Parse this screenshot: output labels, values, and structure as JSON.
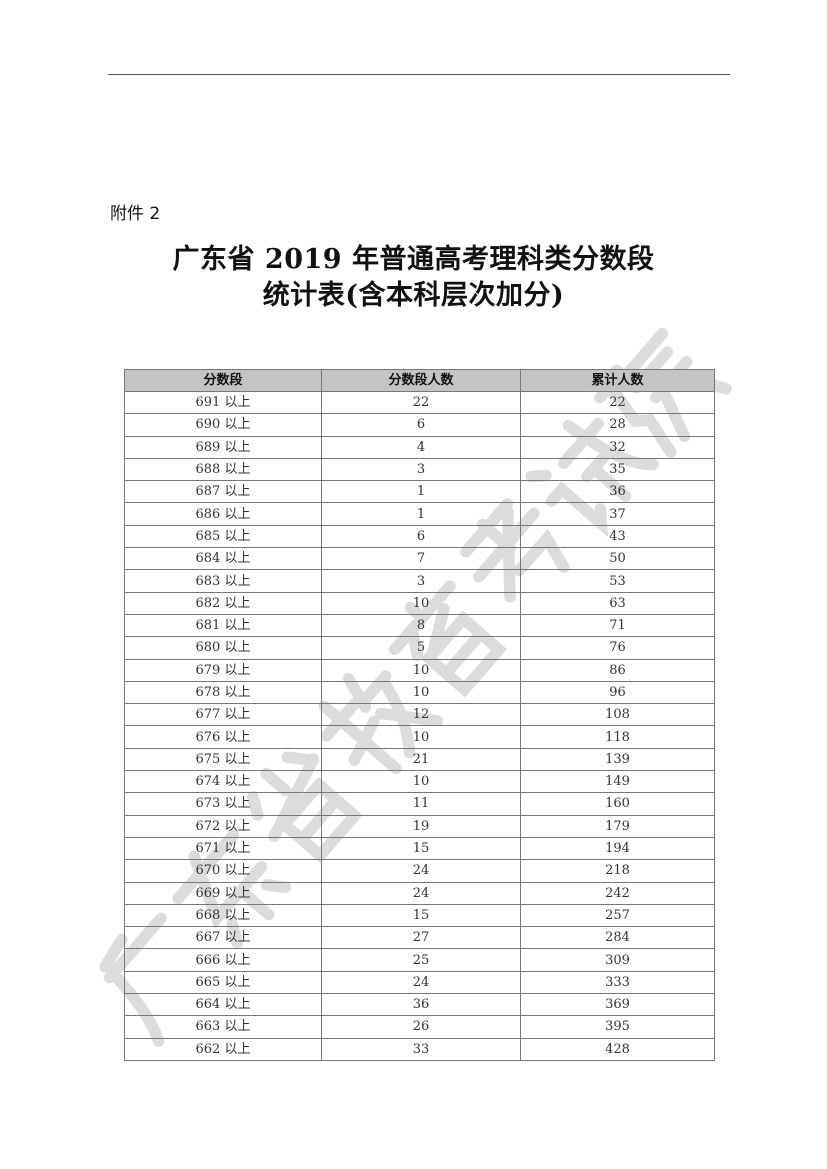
{
  "attachment_label": "附件 2",
  "title_line1": "广东省 2019 年普通高考理科类分数段",
  "title_line2": "统计表(含本科层次加分)",
  "watermark": "广东省教育考试院",
  "table": {
    "headers": [
      "分数段",
      "分数段人数",
      "累计人数"
    ],
    "rows": [
      [
        "691 以上",
        "22",
        "22"
      ],
      [
        "690 以上",
        "6",
        "28"
      ],
      [
        "689 以上",
        "4",
        "32"
      ],
      [
        "688 以上",
        "3",
        "35"
      ],
      [
        "687 以上",
        "1",
        "36"
      ],
      [
        "686 以上",
        "1",
        "37"
      ],
      [
        "685 以上",
        "6",
        "43"
      ],
      [
        "684 以上",
        "7",
        "50"
      ],
      [
        "683 以上",
        "3",
        "53"
      ],
      [
        "682 以上",
        "10",
        "63"
      ],
      [
        "681 以上",
        "8",
        "71"
      ],
      [
        "680 以上",
        "5",
        "76"
      ],
      [
        "679 以上",
        "10",
        "86"
      ],
      [
        "678 以上",
        "10",
        "96"
      ],
      [
        "677 以上",
        "12",
        "108"
      ],
      [
        "676 以上",
        "10",
        "118"
      ],
      [
        "675 以上",
        "21",
        "139"
      ],
      [
        "674 以上",
        "10",
        "149"
      ],
      [
        "673 以上",
        "11",
        "160"
      ],
      [
        "672 以上",
        "19",
        "179"
      ],
      [
        "671 以上",
        "15",
        "194"
      ],
      [
        "670 以上",
        "24",
        "218"
      ],
      [
        "669 以上",
        "24",
        "242"
      ],
      [
        "668 以上",
        "15",
        "257"
      ],
      [
        "667 以上",
        "27",
        "284"
      ],
      [
        "666 以上",
        "25",
        "309"
      ],
      [
        "665 以上",
        "24",
        "333"
      ],
      [
        "664 以上",
        "36",
        "369"
      ],
      [
        "663 以上",
        "26",
        "395"
      ],
      [
        "662 以上",
        "33",
        "428"
      ]
    ]
  }
}
